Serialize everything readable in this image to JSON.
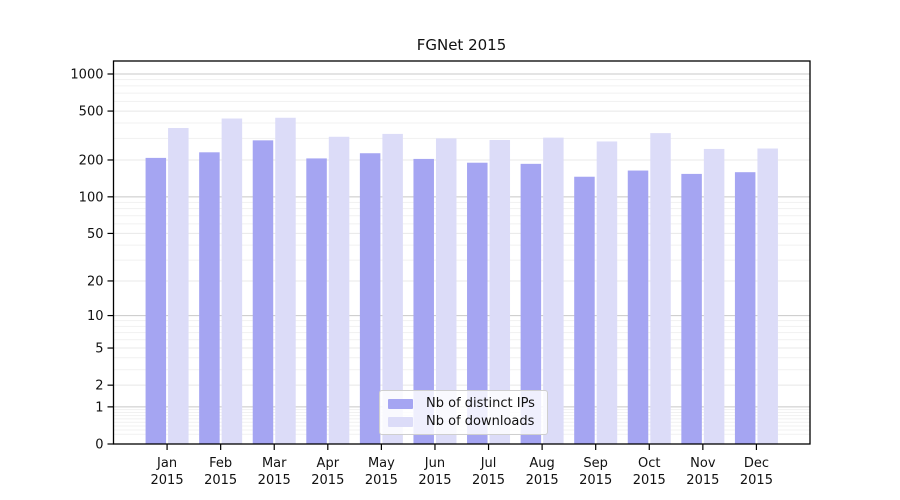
{
  "title": "FGNet 2015",
  "chart_data": {
    "type": "bar",
    "title": "FGNet 2015",
    "categories": [
      "Jan",
      "Feb",
      "Mar",
      "Apr",
      "May",
      "Jun",
      "Jul",
      "Aug",
      "Sep",
      "Oct",
      "Nov",
      "Dec"
    ],
    "year_label": "2015",
    "series": [
      {
        "name": "Nb of distinct IPs",
        "color": "#a5a5f2",
        "values": [
          208,
          231,
          289,
          206,
          227,
          204,
          190,
          186,
          146,
          164,
          154,
          159
        ]
      },
      {
        "name": "Nb of downloads",
        "color": "#dcdcf8",
        "values": [
          364,
          435,
          441,
          309,
          326,
          300,
          291,
          304,
          283,
          331,
          246,
          248
        ]
      }
    ],
    "xlabel": "",
    "ylabel": "",
    "yscale": "symlog (y proportional to ln(1+v))",
    "y_ticks": [
      0,
      1,
      2,
      5,
      10,
      20,
      50,
      100,
      200,
      500,
      1000
    ],
    "ylim": [
      0,
      1275
    ],
    "grid": true,
    "legend_position": "lower center"
  },
  "colors": {
    "bar_distinct_ips": "#a5a5f2",
    "bar_downloads": "#dcdcf8",
    "decade_gridline": "#c8c8c8",
    "major_gridline": "#e8e8e8",
    "minor_gridline": "#f1f1f1",
    "axis": "#000000",
    "text": "#111111"
  }
}
